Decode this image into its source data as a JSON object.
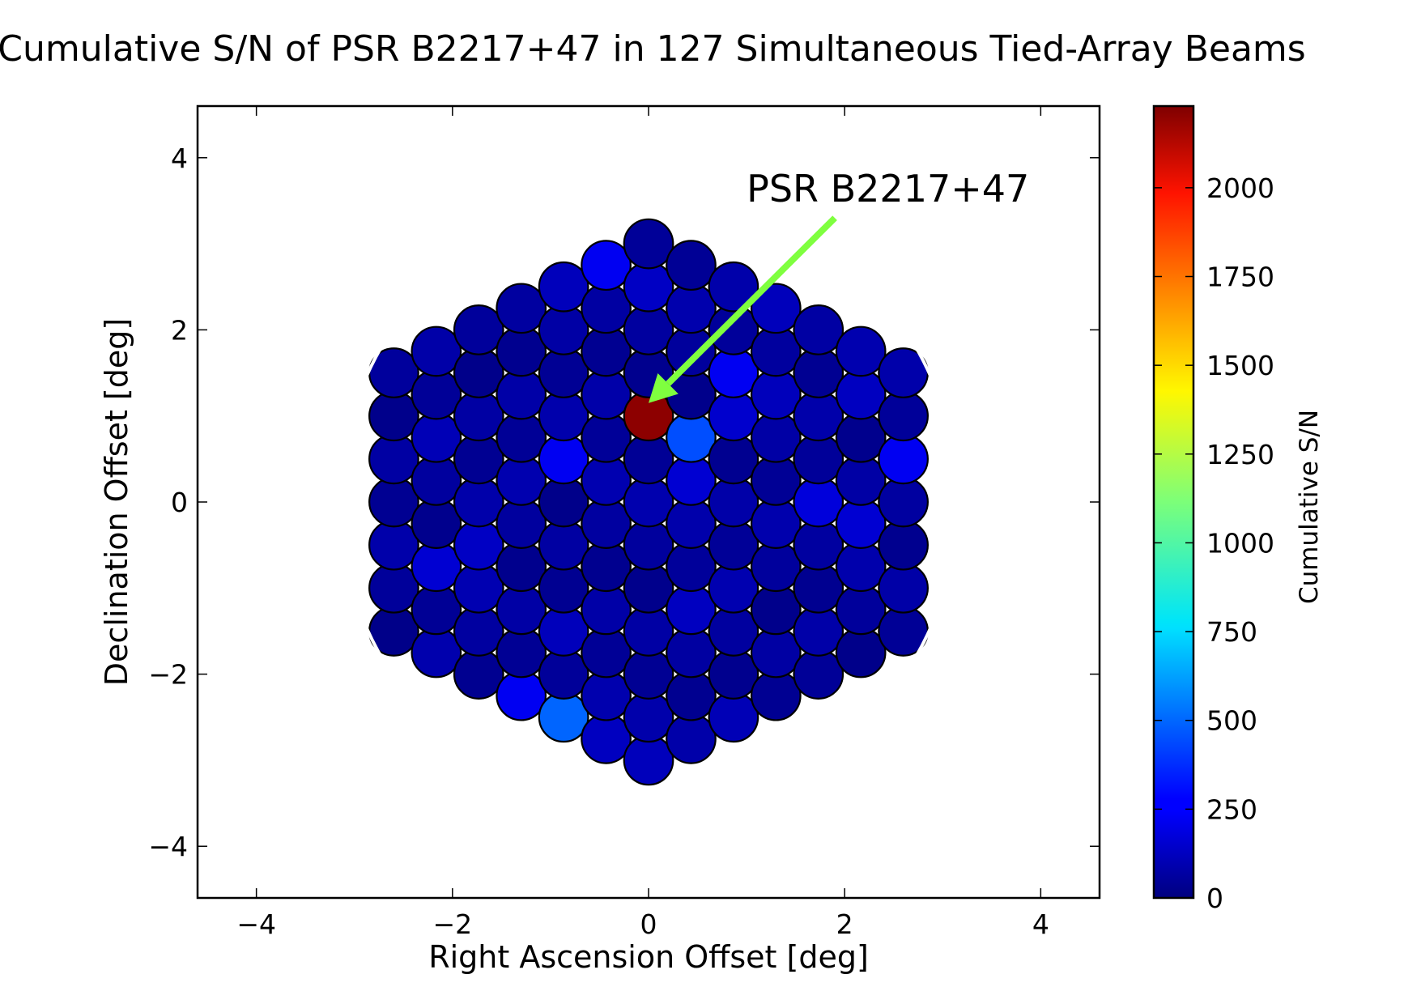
{
  "chart_data": {
    "type": "scatter",
    "title": "Cumulative S/N of PSR B2217+47 in 127 Simultaneous Tied-Array Beams",
    "xlabel": "Right Ascension Offset [deg]",
    "ylabel": "Declination Offset [deg]",
    "xlim": [
      -4.6,
      4.6
    ],
    "ylim": [
      -4.6,
      4.6
    ],
    "xticks": [
      -4,
      -2,
      0,
      2,
      4
    ],
    "yticks": [
      -4,
      -2,
      0,
      2,
      4
    ],
    "xtick_labels": [
      "−4",
      "−2",
      "0",
      "2",
      "4"
    ],
    "ytick_labels": [
      "−4",
      "−2",
      "0",
      "2",
      "4"
    ],
    "grid": false,
    "beam_layout": "hexagonal, 127 beams, 7 rings around center",
    "beam_spacing_deg": 0.5,
    "beam_diameter_deg": 0.5,
    "grid_center": [
      0,
      0
    ],
    "fov_circle": {
      "center": [
        0,
        0
      ],
      "radius_deg": 3.15,
      "color": "#ffffff"
    },
    "colormap": "jet",
    "default_beam_sn": 60,
    "highlighted_beams": [
      {
        "x": 0.0,
        "y": 1.15,
        "sn": 2200
      },
      {
        "x": 0.43,
        "y": 0.9,
        "sn": 450
      },
      {
        "x": -0.87,
        "y": -2.87,
        "sn": 500
      },
      {
        "x": -0.87,
        "y": 0.6,
        "sn": 250
      },
      {
        "x": 0.87,
        "y": 1.75,
        "sn": 250
      },
      {
        "x": -1.3,
        "y": -2.0,
        "sn": 250
      },
      {
        "x": -0.43,
        "y": 3.2,
        "sn": 250
      },
      {
        "x": 2.6,
        "y": 0.6,
        "sn": 250
      },
      {
        "x": 0.87,
        "y": -2.3,
        "sn": 200
      },
      {
        "x": 1.73,
        "y": 0.0,
        "sn": 200
      },
      {
        "x": 2.16,
        "y": -0.25,
        "sn": 180
      },
      {
        "x": 0.87,
        "y": 1.15,
        "sn": 170
      },
      {
        "x": 0.43,
        "y": 0.3,
        "sn": 180
      },
      {
        "x": -2.16,
        "y": -0.85,
        "sn": 180
      },
      {
        "x": 0.0,
        "y": 2.6,
        "sn": 150
      },
      {
        "x": -1.73,
        "y": -0.55,
        "sn": 150
      },
      {
        "x": 2.16,
        "y": 1.45,
        "sn": 140
      },
      {
        "x": 1.3,
        "y": 1.45,
        "sn": 130
      },
      {
        "x": -0.87,
        "y": 2.3,
        "sn": 130
      },
      {
        "x": 1.3,
        "y": 2.6,
        "sn": 130
      },
      {
        "x": 0.43,
        "y": -1.45,
        "sn": 140
      },
      {
        "x": -0.43,
        "y": -2.6,
        "sn": 140
      },
      {
        "x": 0.0,
        "y": -2.87,
        "sn": 130
      },
      {
        "x": -0.87,
        "y": -1.7,
        "sn": 130
      },
      {
        "x": -2.16,
        "y": 0.9,
        "sn": 120
      },
      {
        "x": 0.87,
        "y": -2.87,
        "sn": 120
      }
    ],
    "annotation": {
      "text": "PSR B2217+47",
      "text_at": [
        1.0,
        3.3
      ],
      "arrow_from": [
        1.9,
        3.3
      ],
      "arrow_to": [
        0.0,
        1.15
      ],
      "color": "#7fff3f"
    },
    "colorbar": {
      "label": "Cumulative S/N",
      "min": 0,
      "max": 2230,
      "ticks": [
        0,
        250,
        500,
        750,
        1000,
        1250,
        1500,
        1750,
        2000
      ],
      "tick_labels": [
        "0",
        "250",
        "500",
        "750",
        "1000",
        "1250",
        "1500",
        "1750",
        "2000"
      ]
    }
  }
}
